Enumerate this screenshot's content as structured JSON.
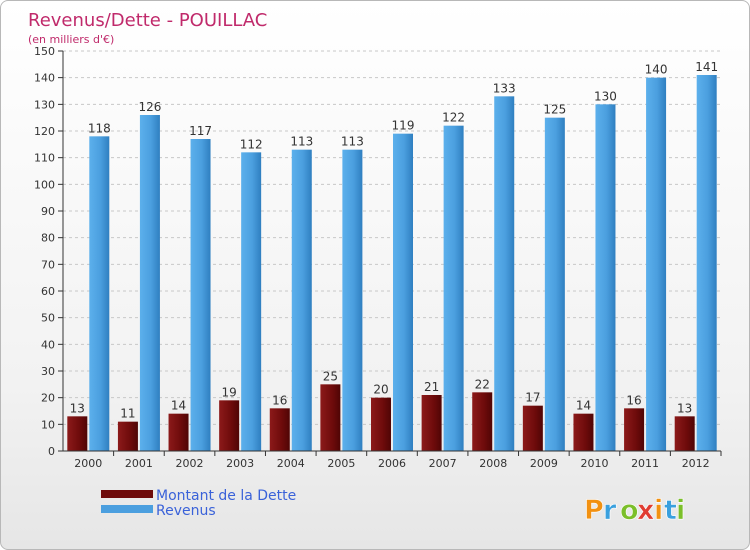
{
  "chart_data": {
    "type": "bar",
    "title": "Revenus/Dette - POUILLAC",
    "subtitle": "(en milliers d'€)",
    "xlabel": "",
    "ylabel": "",
    "ylim": [
      0,
      150
    ],
    "ytick_step": 10,
    "grid": true,
    "categories": [
      "2000",
      "2001",
      "2002",
      "2003",
      "2004",
      "2005",
      "2006",
      "2007",
      "2008",
      "2009",
      "2010",
      "2011",
      "2012"
    ],
    "series": [
      {
        "name": "Montant de la Dette",
        "values": [
          13,
          11,
          14,
          19,
          16,
          25,
          20,
          21,
          22,
          17,
          14,
          16,
          13
        ],
        "color": "#7a0f0f"
      },
      {
        "name": "Revenus",
        "values": [
          118,
          126,
          117,
          112,
          113,
          113,
          119,
          122,
          133,
          125,
          130,
          140,
          141
        ],
        "color": "#5aa8e6"
      }
    ],
    "legend_position": "bottom-left"
  },
  "branding": {
    "logo_text": "Proxiti",
    "logo_colors": [
      "#f29111",
      "#3aa0de",
      "#7bbf2a",
      "#e03c31",
      "#f29111",
      "#3aa0de",
      "#7bbf2a"
    ]
  }
}
